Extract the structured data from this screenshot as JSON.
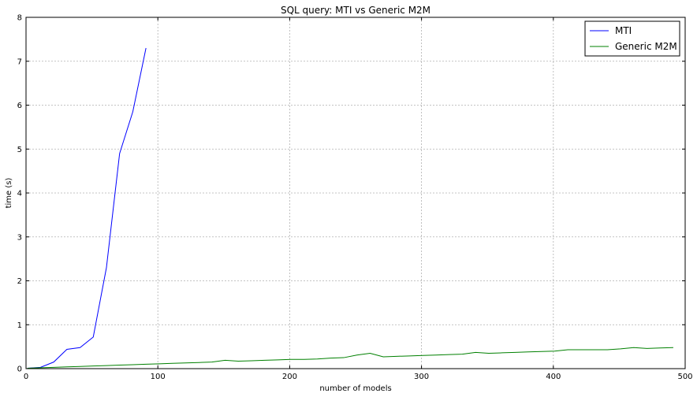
{
  "chart_data": {
    "type": "line",
    "title": "SQL query: MTI vs Generic M2M",
    "xlabel": "number of models",
    "ylabel": "time (s)",
    "xlim": [
      0,
      500
    ],
    "ylim": [
      0,
      8
    ],
    "xticks": [
      0,
      100,
      200,
      300,
      400,
      500
    ],
    "yticks": [
      0,
      1,
      2,
      3,
      4,
      5,
      6,
      7,
      8
    ],
    "grid": true,
    "legend_position": "top-right",
    "series": [
      {
        "name": "MTI",
        "color": "#0000ff",
        "x": [
          1,
          11,
          21,
          31,
          41,
          51,
          61,
          71,
          81,
          91
        ],
        "y": [
          0.01,
          0.03,
          0.15,
          0.44,
          0.48,
          0.72,
          2.3,
          4.9,
          5.85,
          7.3
        ]
      },
      {
        "name": "Generic M2M",
        "color": "#008000",
        "x": [
          1,
          11,
          21,
          31,
          41,
          51,
          61,
          71,
          81,
          91,
          101,
          111,
          121,
          131,
          141,
          151,
          161,
          171,
          181,
          191,
          201,
          211,
          221,
          231,
          241,
          251,
          261,
          271,
          281,
          291,
          301,
          311,
          321,
          331,
          341,
          351,
          361,
          371,
          381,
          391,
          401,
          411,
          421,
          431,
          441,
          451,
          461,
          471,
          481,
          491
        ],
        "y": [
          0.01,
          0.02,
          0.03,
          0.04,
          0.05,
          0.06,
          0.07,
          0.08,
          0.09,
          0.1,
          0.11,
          0.12,
          0.13,
          0.14,
          0.15,
          0.19,
          0.17,
          0.18,
          0.19,
          0.2,
          0.21,
          0.21,
          0.22,
          0.24,
          0.25,
          0.31,
          0.35,
          0.27,
          0.28,
          0.29,
          0.3,
          0.31,
          0.32,
          0.33,
          0.37,
          0.35,
          0.36,
          0.37,
          0.38,
          0.39,
          0.4,
          0.43,
          0.43,
          0.43,
          0.43,
          0.45,
          0.48,
          0.46,
          0.47,
          0.48
        ]
      }
    ]
  }
}
